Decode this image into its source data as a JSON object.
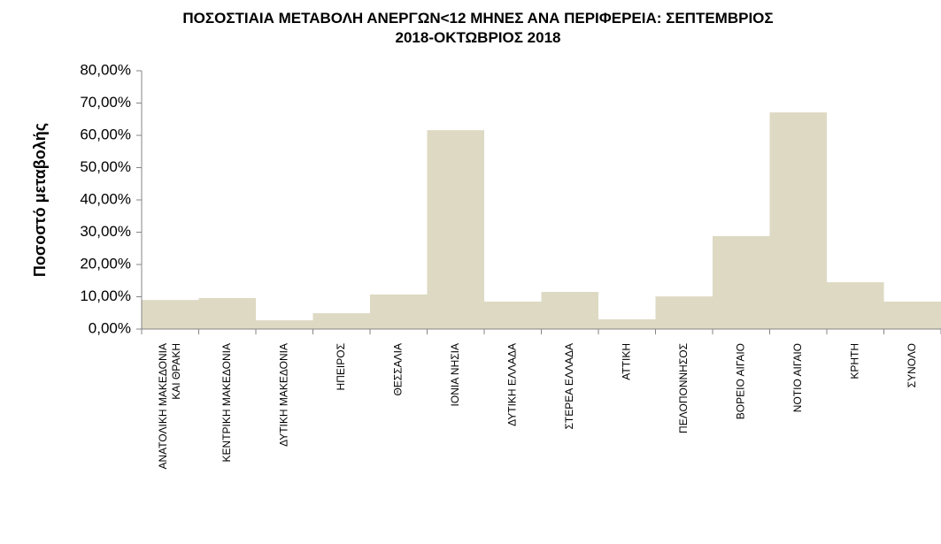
{
  "chart_data": {
    "type": "bar",
    "title": "ΠΟΣΟΣΤΙΑΙΑ ΜΕΤΑΒΟΛΗ  ΑΝΕΡΓΩΝ<12 ΜΗΝΕΣ ΑΝΑ ΠΕΡΙΦΕΡΕΙΑ: ΣΕΠΤΕΜΒΡΙΟΣ 2018-ΟΚΤΩΒΡΙΟΣ 2018",
    "y_label": "Ποσοστό μεταβολής",
    "categories": [
      "ΑΝΑΤΟΛΙΚΗ ΜΑΚΕΔΟΝΙΑ ΚΑΙ ΘΡΑΚΗ",
      "ΚΕΝΤΡΙΚΗ ΜΑΚΕΔΟΝΙΑ",
      "ΔΥΤΙΚΗ ΜΑΚΕΔΟΝΙΑ",
      "ΗΠΕΙΡΟΣ",
      "ΘΕΣΣΑΛΙΑ",
      "ΙΟΝΙΑ ΝΗΣΙΑ",
      "ΔΥΤΙΚΗ ΕΛΛΑΔΑ",
      "ΣΤΕΡΕΑ ΕΛΛΑΔΑ",
      "ΑΤΤΙΚΗ",
      "ΠΕΛΟΠΟΝΝΗΣΟΣ",
      "ΒΟΡΕΙΟ ΑΙΓΑΙΟ",
      "ΝΟΤΙΟ ΑΙΓΑΙΟ",
      "ΚΡΗΤΗ",
      "ΣΥΝΟΛΟ"
    ],
    "values": [
      9.0,
      9.6,
      2.7,
      4.9,
      10.7,
      61.6,
      8.5,
      11.5,
      3.0,
      10.1,
      28.8,
      67.1,
      14.5,
      8.5
    ],
    "color": "#ddd9c3",
    "ylim": [
      0,
      80
    ],
    "yticks": [
      {
        "value": 0,
        "label": "0,00%"
      },
      {
        "value": 10,
        "label": "10,00%"
      },
      {
        "value": 20,
        "label": "20,00%"
      },
      {
        "value": 30,
        "label": "30,00%"
      },
      {
        "value": 40,
        "label": "40,00%"
      },
      {
        "value": 50,
        "label": "50,00%"
      },
      {
        "value": 60,
        "label": "60,00%"
      },
      {
        "value": 70,
        "label": "70,00%"
      },
      {
        "value": 80,
        "label": "80,00%"
      }
    ],
    "grid": false
  }
}
